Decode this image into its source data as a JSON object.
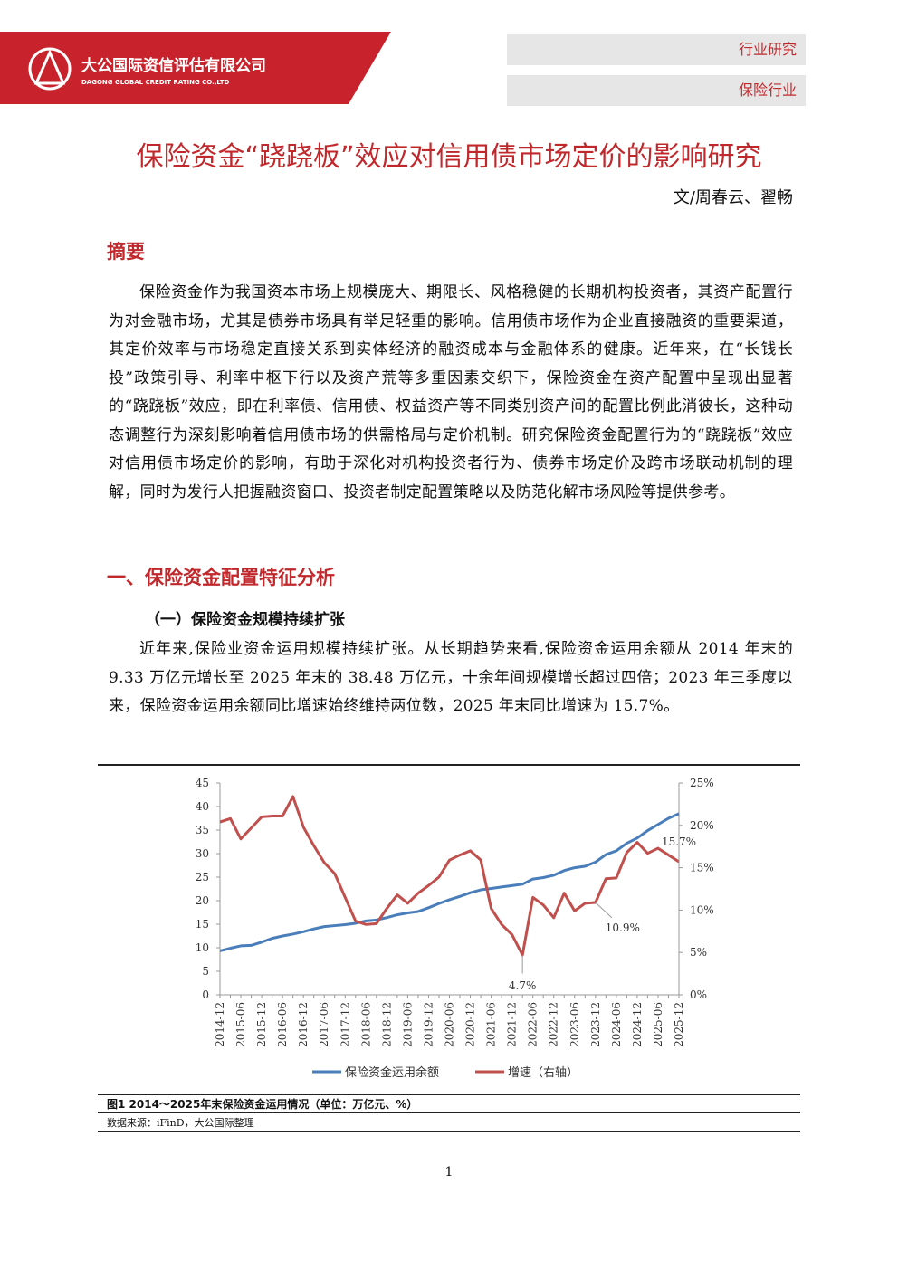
{
  "header": {
    "company_cn": "大公国际资信评估有限公司",
    "company_en": "DAGONG GLOBAL CREDIT RATING CO.,LTD",
    "tags": [
      "行业研究",
      "保险行业"
    ]
  },
  "title": "保险资金“跷跷板”效应对信用债市场定价的影响研究",
  "author": "文/周春云、翟畅",
  "sections": [
    {
      "heading": "摘要",
      "paragraphs": [
        "保险资金作为我国资本市场上规模庞大、期限长、风格稳健的长期机构投资者，其资产配置行为对金融市场，尤其是债券市场具有举足轻重的影响。信用债市场作为企业直接融资的重要渠道，其定价效率与市场稳定直接关系到实体经济的融资成本与金融体系的健康。近年来，在“长钱长投”政策引导、利率中枢下行以及资产荒等多重因素交织下，保险资金在资产配置中呈现出显著的“跷跷板”效应，即在利率债、信用债、权益资产等不同类别资产间的配置比例此消彼长，这种动态调整行为深刻影响着信用债市场的供需格局与定价机制。研究保险资金配置行为的“跷跷板”效应对信用债市场定价的影响，有助于深化对机构投资者行为、债券市场定价及跨市场联动机制的理解，同时为发行人把握融资窗口、投资者制定配置策略以及防范化解市场风险等提供参考。"
      ]
    },
    {
      "heading": "一、保险资金配置特征分析",
      "subheading": "（一）保险资金规模持续扩张",
      "paragraphs": [
        "近年来,保险业资金运用规模持续扩张。从长期趋势来看,保险资金运用余额从 2014 年末的 9.33 万亿元增长至 2025 年末的 38.48 万亿元，十余年间规模增长超过四倍；2023 年三季度以来，保险资金运用余额同比增速始终维持两位数，2025 年末同比增速为 15.7%。"
      ]
    }
  ],
  "chart_data": {
    "type": "line",
    "categories": [
      "2014-12",
      null,
      "2015-06",
      null,
      "2015-12",
      null,
      "2016-06",
      null,
      "2016-12",
      null,
      "2017-06",
      null,
      "2017-12",
      null,
      "2018-06",
      null,
      "2018-12",
      null,
      "2019-06",
      null,
      "2019-12",
      null,
      "2020-06",
      null,
      "2020-12",
      null,
      "2021-06",
      null,
      "2021-12",
      null,
      "2022-06",
      null,
      "2022-12",
      null,
      "2023-06",
      null,
      "2023-12",
      null,
      "2024-06",
      null,
      "2024-12",
      null,
      "2025-06",
      null,
      "2025-12"
    ],
    "series": [
      {
        "name": "保险资金运用余额",
        "color": "#4a7ebb",
        "values": [
          9.33,
          9.9,
          10.4,
          10.5,
          11.2,
          12.0,
          12.5,
          12.9,
          13.4,
          14.0,
          14.5,
          14.7,
          14.9,
          15.2,
          15.7,
          15.9,
          16.4,
          17.0,
          17.4,
          17.7,
          18.5,
          19.4,
          20.2,
          20.9,
          21.7,
          22.3,
          22.6,
          22.9,
          23.2,
          23.5,
          24.6,
          24.9,
          25.4,
          26.4,
          27.0,
          27.3,
          28.2,
          29.8,
          30.6,
          32.2,
          33.3,
          34.9,
          36.2,
          37.5,
          38.48
        ]
      },
      {
        "name": "增速（右轴）",
        "color": "#c0504d",
        "axis": "y2",
        "values": [
          20.4,
          20.8,
          18.4,
          19.7,
          21.0,
          21.1,
          21.1,
          23.4,
          19.8,
          17.6,
          15.6,
          14.3,
          11.5,
          8.7,
          8.3,
          8.4,
          10.2,
          11.8,
          10.8,
          12.0,
          12.9,
          13.9,
          15.9,
          16.5,
          17.0,
          15.9,
          10.2,
          8.3,
          7.1,
          4.7,
          11.5,
          10.6,
          9.1,
          12.0,
          9.9,
          10.8,
          10.9,
          13.7,
          13.8,
          16.8,
          18.0,
          16.7,
          17.3,
          16.5,
          15.7
        ],
        "value_labels": [
          null,
          null,
          null,
          null,
          null,
          null,
          null,
          null,
          null,
          null,
          null,
          null,
          null,
          null,
          null,
          null,
          null,
          null,
          null,
          null,
          null,
          null,
          null,
          null,
          null,
          null,
          null,
          null,
          null,
          "4.7%",
          null,
          null,
          null,
          null,
          null,
          null,
          "10.9%",
          null,
          null,
          null,
          null,
          null,
          null,
          null,
          "15.7%"
        ]
      }
    ],
    "ylim": [
      0,
      45
    ],
    "yticks": [
      0,
      5,
      10,
      15,
      20,
      25,
      30,
      35,
      40,
      45
    ],
    "y2lim": [
      0,
      25
    ],
    "y2ticks": [
      {
        "value": 0,
        "label": "0%"
      },
      {
        "value": 5,
        "label": "5%"
      },
      {
        "value": 10,
        "label": "10%"
      },
      {
        "value": 15,
        "label": "15%"
      },
      {
        "value": 20,
        "label": "20%"
      },
      {
        "value": 25,
        "label": "25%"
      }
    ],
    "grid": false,
    "legend": "bottom"
  },
  "figure": {
    "caption": "图1 2014～2025年末保险资金运用情况（单位：万亿元、%）",
    "source": "数据来源：iFinD，大公国际整理"
  },
  "page_number": 1
}
